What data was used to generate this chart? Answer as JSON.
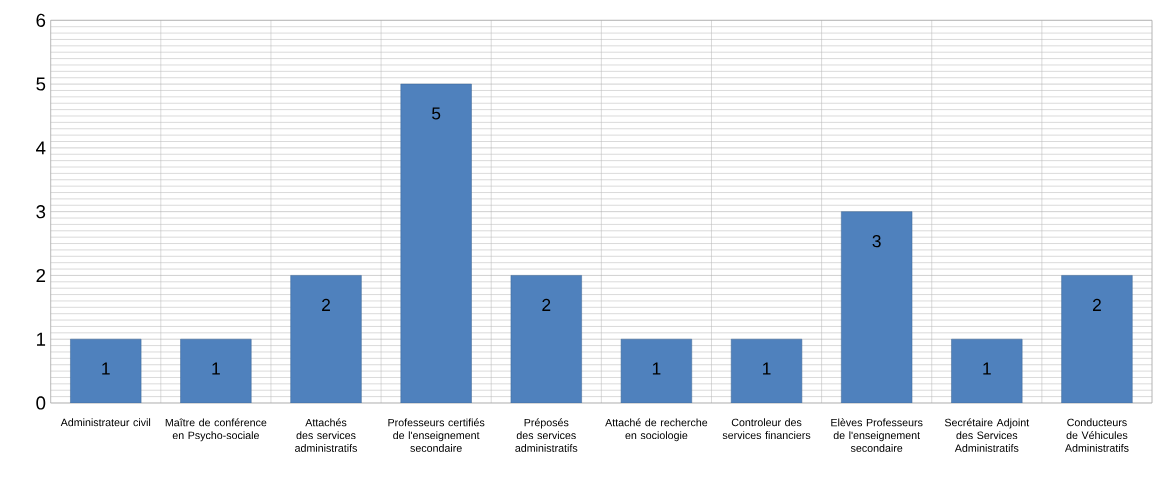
{
  "chart_data": {
    "type": "bar",
    "categories": [
      "Administrateur civil",
      "Maître de conférence en Psycho-sociale",
      "Attachés des services administratifs",
      "Professeurs certifiés de l'enseignement secondaire",
      "Préposés des services administratifs",
      "Attaché de recherche en sociologie",
      "Controleur des services financiers",
      "Elèves Professeurs de l'enseignement secondaire",
      "Secrétaire Adjoint des Services Administratifs",
      "Conducteurs de Véhicules Administratifs"
    ],
    "values": [
      1,
      1,
      2,
      5,
      2,
      1,
      1,
      3,
      1,
      2
    ],
    "value_labels": [
      "1",
      "1",
      "2",
      "5",
      "2",
      "1",
      "1",
      "3",
      "1",
      "2"
    ],
    "color": "#4f81bd",
    "ylim": [
      0,
      6
    ],
    "yticks": [
      0,
      1,
      2,
      3,
      4,
      5,
      6
    ],
    "grid": true
  }
}
